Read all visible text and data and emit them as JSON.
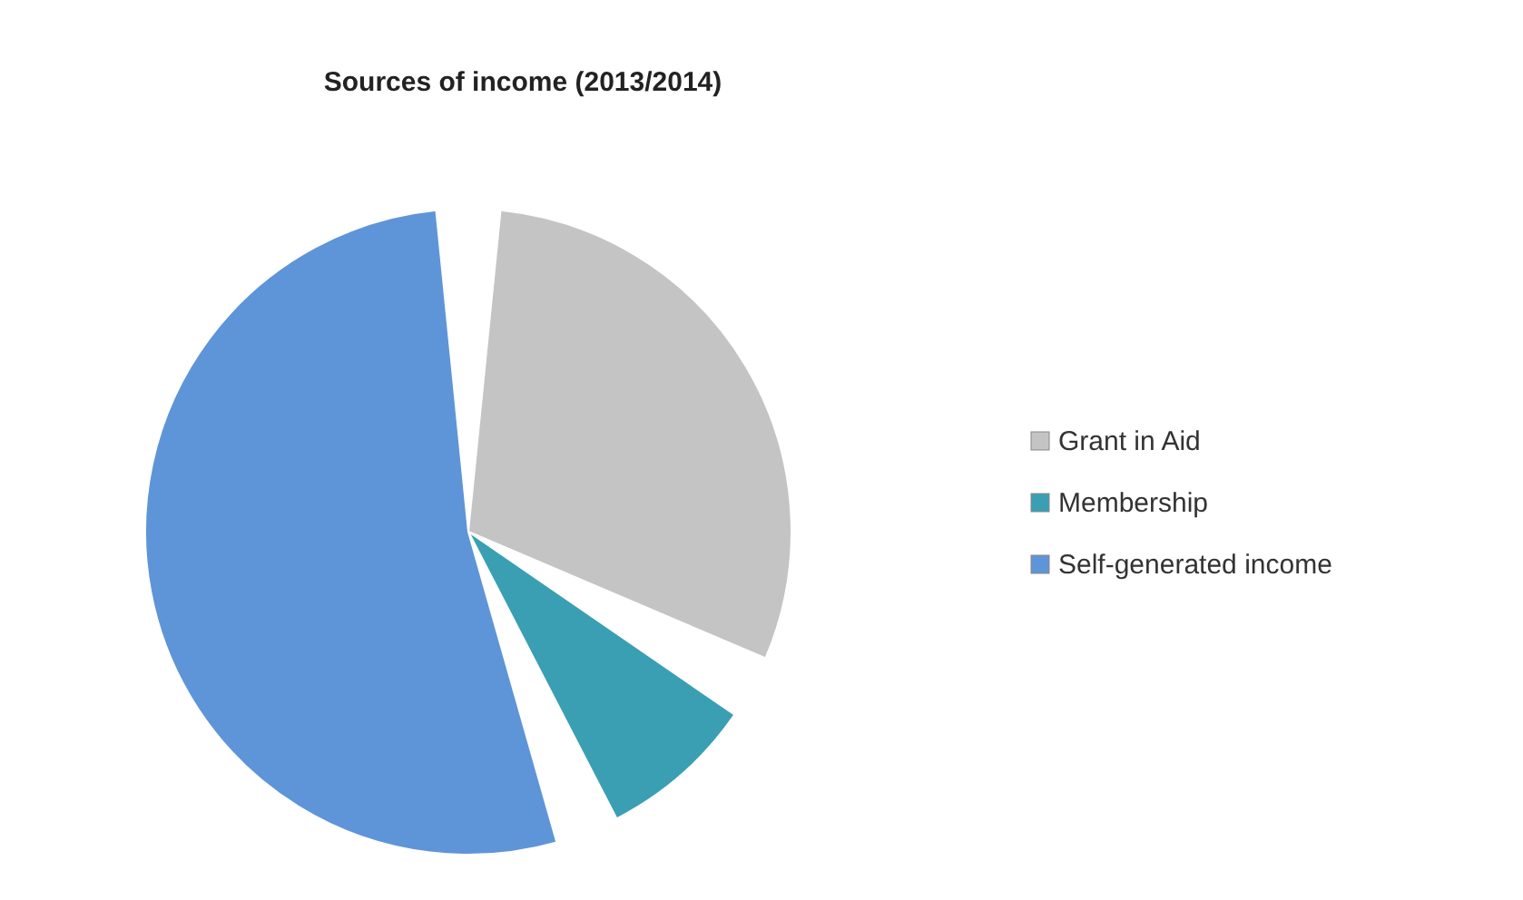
{
  "chart_data": {
    "type": "pie",
    "title": "Sources of income (2013/2014)",
    "categories": [
      "Grant in Aid",
      "Membership",
      "Self-generated income"
    ],
    "values": [
      33,
      11,
      56
    ],
    "colors": [
      "#c4c4c4",
      "#3a9fb3",
      "#5e95d8"
    ],
    "legend": "right"
  }
}
